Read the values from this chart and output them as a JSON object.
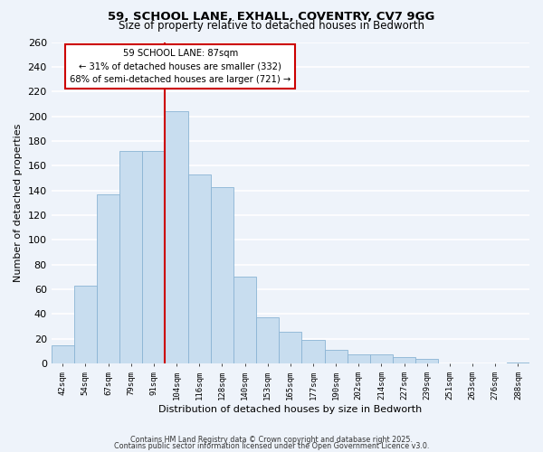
{
  "title": "59, SCHOOL LANE, EXHALL, COVENTRY, CV7 9GG",
  "subtitle": "Size of property relative to detached houses in Bedworth",
  "xlabel": "Distribution of detached houses by size in Bedworth",
  "ylabel": "Number of detached properties",
  "bar_color": "#c8ddef",
  "bar_edge_color": "#8ab4d4",
  "categories": [
    "42sqm",
    "54sqm",
    "67sqm",
    "79sqm",
    "91sqm",
    "104sqm",
    "116sqm",
    "128sqm",
    "140sqm",
    "153sqm",
    "165sqm",
    "177sqm",
    "190sqm",
    "202sqm",
    "214sqm",
    "227sqm",
    "239sqm",
    "251sqm",
    "263sqm",
    "276sqm",
    "288sqm"
  ],
  "values": [
    15,
    63,
    137,
    172,
    172,
    204,
    153,
    143,
    70,
    37,
    26,
    19,
    11,
    7,
    7,
    5,
    4,
    0,
    0,
    0,
    1
  ],
  "ylim": [
    0,
    260
  ],
  "yticks": [
    0,
    20,
    40,
    60,
    80,
    100,
    120,
    140,
    160,
    180,
    200,
    220,
    240,
    260
  ],
  "property_line_label": "59 SCHOOL LANE: 87sqm",
  "annotation_line1": "← 31% of detached houses are smaller (332)",
  "annotation_line2": "68% of semi-detached houses are larger (721) →",
  "footer1": "Contains HM Land Registry data © Crown copyright and database right 2025.",
  "footer2": "Contains public sector information licensed under the Open Government Licence v3.0.",
  "bg_color": "#eef3fa",
  "grid_color": "#ffffff",
  "annotation_box_color": "#ffffff",
  "annotation_box_edge": "#cc0000",
  "red_line_color": "#cc0000",
  "red_line_x": 4.5
}
